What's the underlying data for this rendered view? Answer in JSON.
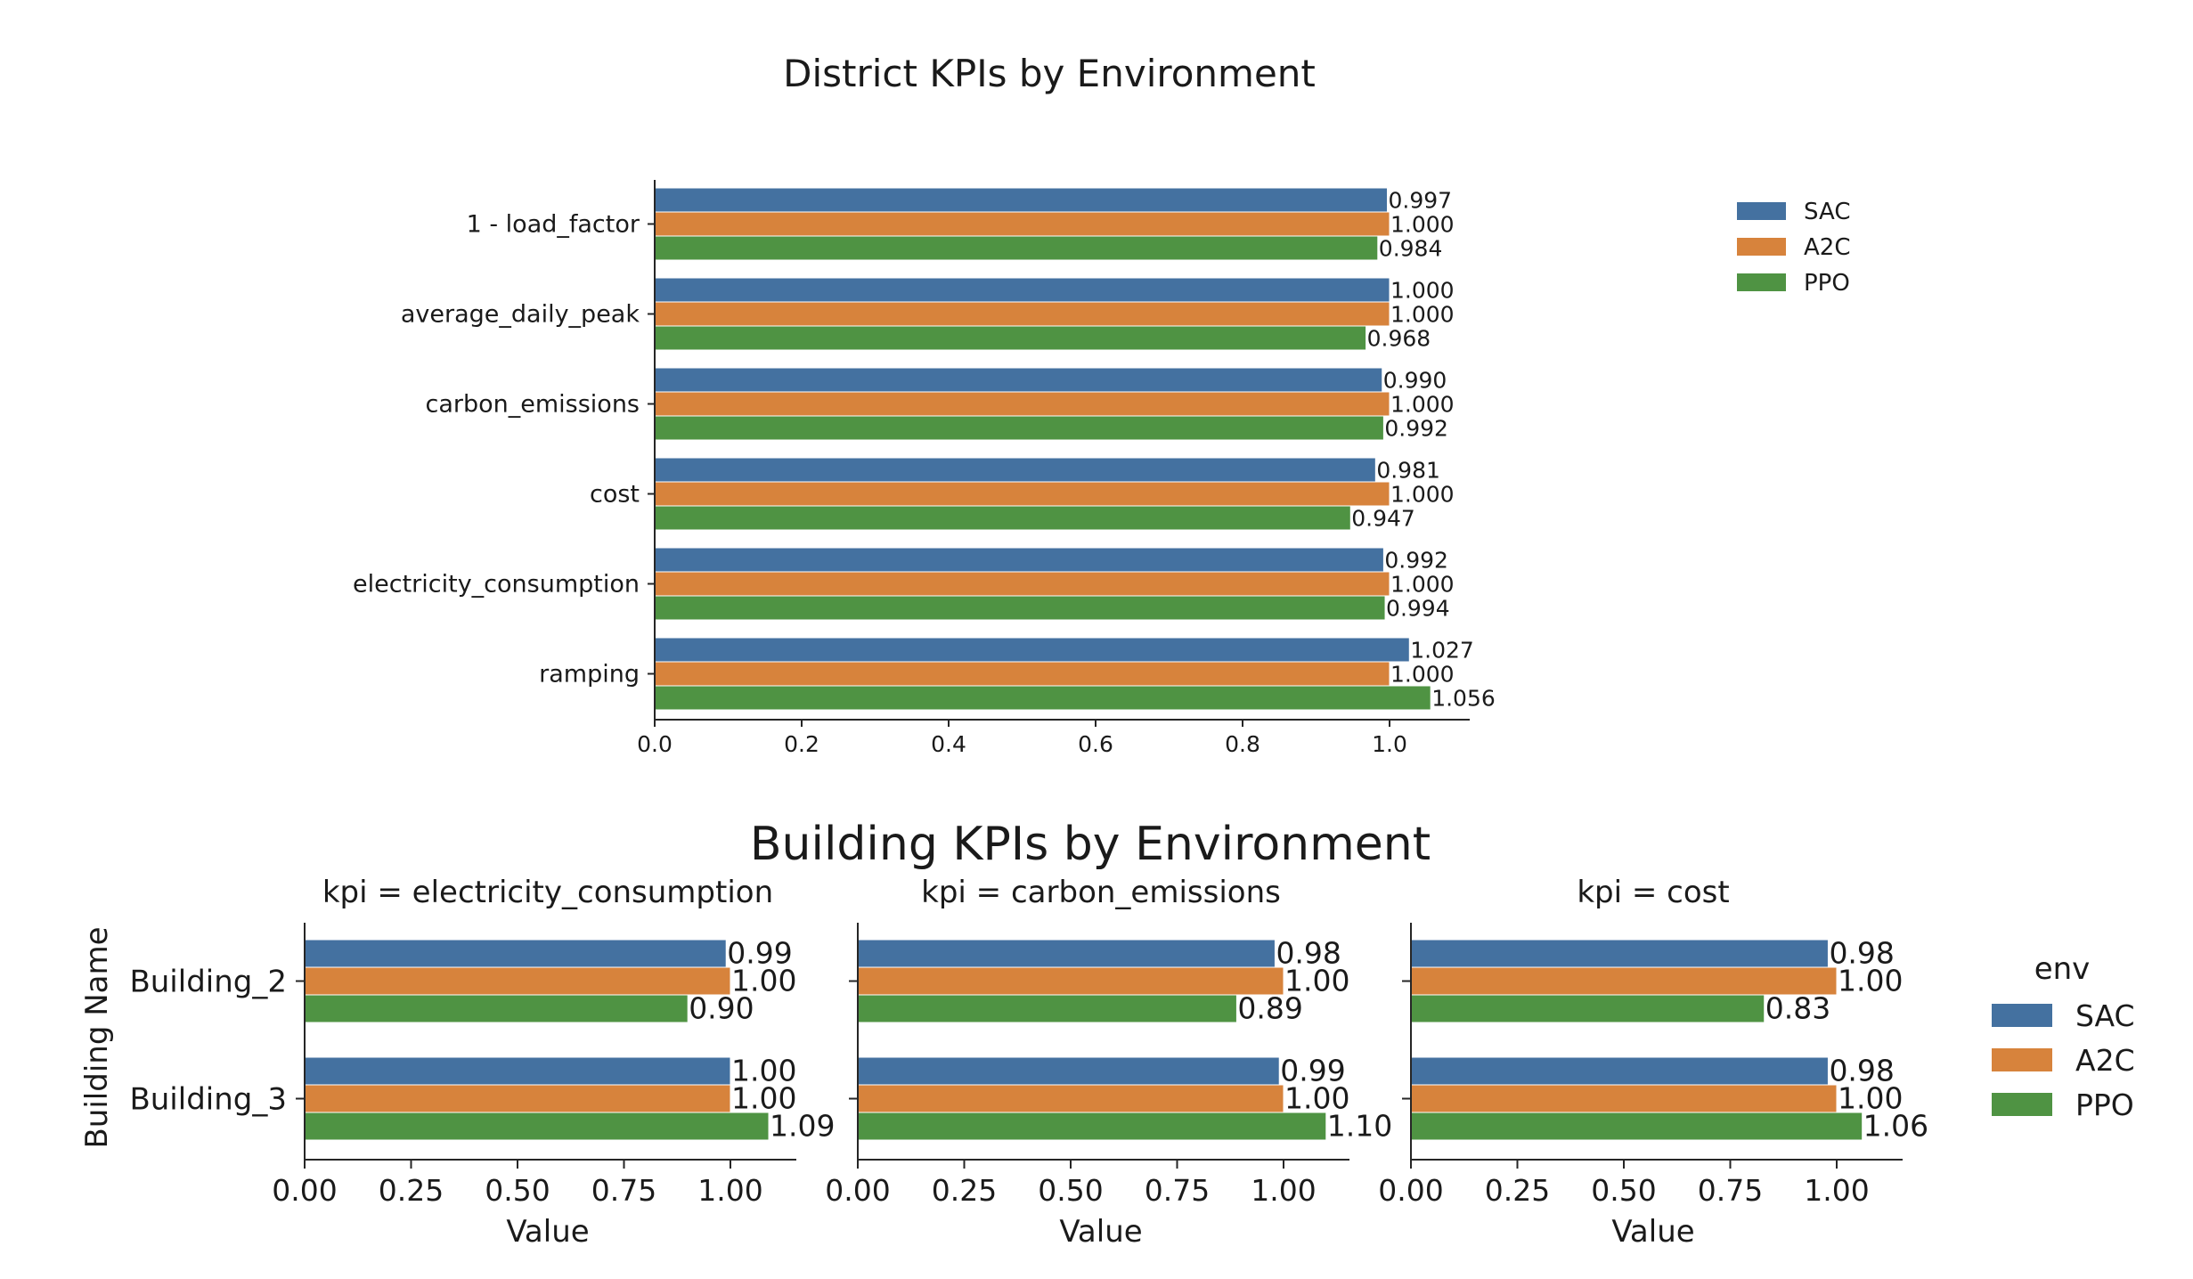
{
  "colors": {
    "SAC": "#4471a0",
    "A2C": "#d7833c",
    "PPO": "#4f9343",
    "axis": "#262626"
  },
  "chart_data": [
    {
      "type": "bar",
      "orientation": "horizontal",
      "title": "District KPIs by Environment",
      "categories": [
        "1 - load_factor",
        "average_daily_peak",
        "carbon_emissions",
        "cost",
        "electricity_consumption",
        "ramping"
      ],
      "series": [
        {
          "name": "SAC",
          "values": [
            0.997,
            1.0,
            0.99,
            0.981,
            0.992,
            1.027
          ],
          "labels": [
            "0.997",
            "1.000",
            "0.990",
            "0.981",
            "0.992",
            "1.027"
          ]
        },
        {
          "name": "A2C",
          "values": [
            1.0,
            1.0,
            1.0,
            1.0,
            1.0,
            1.0
          ],
          "labels": [
            "1.000",
            "1.000",
            "1.000",
            "1.000",
            "1.000",
            "1.000"
          ]
        },
        {
          "name": "PPO",
          "values": [
            0.984,
            0.968,
            0.992,
            0.947,
            0.994,
            1.056
          ],
          "labels": [
            "0.984",
            "0.968",
            "0.992",
            "0.947",
            "0.994",
            "1.056"
          ]
        }
      ],
      "xticks": [
        "0.0",
        "0.2",
        "0.4",
        "0.6",
        "0.8",
        "1.0"
      ],
      "xlim": [
        0,
        1.11
      ],
      "legend": {
        "position": "right",
        "title": ""
      }
    },
    {
      "type": "bar",
      "orientation": "horizontal",
      "title": "Building KPIs by Environment",
      "ylabel": "Building Name",
      "categories": [
        "Building_2",
        "Building_3"
      ],
      "xlim": [
        0,
        1.16
      ],
      "xticks": [
        "0.00",
        "0.25",
        "0.50",
        "0.75",
        "1.00"
      ],
      "legend": {
        "position": "right",
        "title": "env"
      },
      "facets": [
        {
          "title": "kpi = electricity_consumption",
          "xlabel": "Value",
          "series": [
            {
              "name": "SAC",
              "values": [
                0.99,
                1.0
              ],
              "labels": [
                "0.99",
                "1.00"
              ]
            },
            {
              "name": "A2C",
              "values": [
                1.0,
                1.0
              ],
              "labels": [
                "1.00",
                "1.00"
              ]
            },
            {
              "name": "PPO",
              "values": [
                0.9,
                1.09
              ],
              "labels": [
                "0.90",
                "1.09"
              ]
            }
          ]
        },
        {
          "title": "kpi = carbon_emissions",
          "xlabel": "Value",
          "series": [
            {
              "name": "SAC",
              "values": [
                0.98,
                0.99
              ],
              "labels": [
                "0.98",
                "0.99"
              ]
            },
            {
              "name": "A2C",
              "values": [
                1.0,
                1.0
              ],
              "labels": [
                "1.00",
                "1.00"
              ]
            },
            {
              "name": "PPO",
              "values": [
                0.89,
                1.1
              ],
              "labels": [
                "0.89",
                "1.10"
              ]
            }
          ]
        },
        {
          "title": "kpi = cost",
          "xlabel": "Value",
          "series": [
            {
              "name": "SAC",
              "values": [
                0.98,
                0.98
              ],
              "labels": [
                "0.98",
                "0.98"
              ]
            },
            {
              "name": "A2C",
              "values": [
                1.0,
                1.0
              ],
              "labels": [
                "1.00",
                "1.00"
              ]
            },
            {
              "name": "PPO",
              "values": [
                0.83,
                1.06
              ],
              "labels": [
                "0.83",
                "1.06"
              ]
            }
          ]
        }
      ]
    }
  ]
}
